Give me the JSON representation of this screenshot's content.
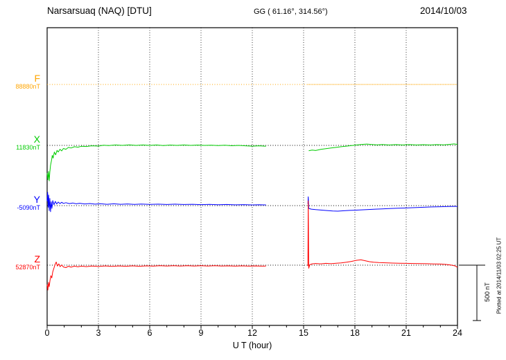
{
  "header": {
    "station": "Narsarsuaq (NAQ)  [DTU]",
    "coords": "GG ( 61.16°, 314.56°)",
    "date": "2014/10/03"
  },
  "axis": {
    "x_title": "U T (hour)",
    "x_ticks": [
      "0",
      "3",
      "6",
      "9",
      "12",
      "15",
      "18",
      "21",
      "24"
    ]
  },
  "scalebar": {
    "label": "500 nT",
    "span_nT": 500
  },
  "side_note": "Plotted at 2014/11/03 02:25 UT",
  "colors": {
    "frame": "#000000",
    "grid": "#000000",
    "F": "#FFA500",
    "X": "#00CC00",
    "Y": "#0000FF",
    "Z": "#FF0000"
  },
  "chart_data": {
    "type": "line",
    "title": "Narsarsuaq (NAQ)  [DTU]",
    "xlabel": "U T (hour)",
    "x_range": [
      0,
      24
    ],
    "x_tick_step": 3,
    "grid": true,
    "legend_position": "left-margin",
    "points_format": "[hour_UT, delta_nT_from_baseline]",
    "scale_nT_per_division": 500,
    "data_gap_hours": [
      12.8,
      15.25
    ],
    "series": [
      {
        "name": "F",
        "color": "#FFA500",
        "baseline_nT": 88880,
        "baseline_label": "88880nT",
        "style": "dotted",
        "segments": [
          [
            [
              0,
              0
            ],
            [
              12.8,
              0
            ]
          ],
          [
            [
              15.25,
              0
            ],
            [
              24,
              0
            ]
          ]
        ]
      },
      {
        "name": "X",
        "color": "#00CC00",
        "baseline_nT": 11830,
        "baseline_label": "11830nT",
        "style": "solid",
        "segments": [
          [
            [
              0,
              -250
            ],
            [
              0.04,
              -310
            ],
            [
              0.08,
              -235
            ],
            [
              0.12,
              -320
            ],
            [
              0.16,
              -240
            ],
            [
              0.2,
              -180
            ],
            [
              0.25,
              -140
            ],
            [
              0.3,
              -90
            ],
            [
              0.35,
              -115
            ],
            [
              0.42,
              -60
            ],
            [
              0.5,
              -85
            ],
            [
              0.58,
              -45
            ],
            [
              0.65,
              -60
            ],
            [
              0.75,
              -35
            ],
            [
              0.85,
              -50
            ],
            [
              0.95,
              -28
            ],
            [
              1.1,
              -35
            ],
            [
              1.25,
              -18
            ],
            [
              1.4,
              -24
            ],
            [
              1.6,
              -12
            ],
            [
              1.8,
              -16
            ],
            [
              2,
              -8
            ],
            [
              2.3,
              -10
            ],
            [
              2.6,
              -4
            ],
            [
              3,
              -6
            ],
            [
              3.3,
              2
            ],
            [
              3.6,
              -2
            ],
            [
              4,
              4
            ],
            [
              4.4,
              0
            ],
            [
              4.8,
              5
            ],
            [
              5.2,
              0
            ],
            [
              5.6,
              4
            ],
            [
              6,
              0
            ],
            [
              6.4,
              4
            ],
            [
              6.8,
              -1
            ],
            [
              7.2,
              3
            ],
            [
              7.6,
              0
            ],
            [
              8,
              4
            ],
            [
              8.4,
              0
            ],
            [
              8.8,
              3
            ],
            [
              9.2,
              0
            ],
            [
              9.6,
              2
            ],
            [
              10,
              -2
            ],
            [
              10.4,
              1
            ],
            [
              10.8,
              -3
            ],
            [
              11.2,
              0
            ],
            [
              11.6,
              -4
            ],
            [
              12,
              -7
            ],
            [
              12.4,
              -4
            ],
            [
              12.8,
              -8
            ]
          ],
          [
            [
              15.3,
              -48
            ],
            [
              15.5,
              -42
            ],
            [
              15.7,
              -46
            ],
            [
              16,
              -36
            ],
            [
              16.3,
              -30
            ],
            [
              16.6,
              -24
            ],
            [
              16.9,
              -18
            ],
            [
              17.2,
              -12
            ],
            [
              17.5,
              -7
            ],
            [
              17.8,
              -2
            ],
            [
              18.1,
              4
            ],
            [
              18.4,
              9
            ],
            [
              18.7,
              12
            ],
            [
              19,
              8
            ],
            [
              19.3,
              5
            ],
            [
              19.6,
              8
            ],
            [
              20,
              4
            ],
            [
              20.4,
              7
            ],
            [
              20.8,
              4
            ],
            [
              21.2,
              7
            ],
            [
              21.6,
              4
            ],
            [
              22,
              6
            ],
            [
              22.4,
              4
            ],
            [
              22.8,
              7
            ],
            [
              23.2,
              5
            ],
            [
              23.5,
              9
            ],
            [
              23.8,
              13
            ],
            [
              24,
              9
            ]
          ]
        ]
      },
      {
        "name": "Y",
        "color": "#0000FF",
        "baseline_nT": -5090,
        "baseline_label": "-5090nT",
        "style": "solid",
        "segments": [
          [
            [
              0,
              40
            ],
            [
              0.03,
              120
            ],
            [
              0.06,
              -15
            ],
            [
              0.09,
              95
            ],
            [
              0.12,
              -45
            ],
            [
              0.16,
              65
            ],
            [
              0.2,
              -55
            ],
            [
              0.24,
              35
            ],
            [
              0.28,
              -25
            ],
            [
              0.33,
              45
            ],
            [
              0.4,
              8
            ],
            [
              0.48,
              38
            ],
            [
              0.56,
              15
            ],
            [
              0.65,
              32
            ],
            [
              0.75,
              18
            ],
            [
              0.85,
              30
            ],
            [
              0.95,
              20
            ],
            [
              1.1,
              26
            ],
            [
              1.3,
              18
            ],
            [
              1.5,
              24
            ],
            [
              1.7,
              16
            ],
            [
              1.9,
              21
            ],
            [
              2.2,
              15
            ],
            [
              2.5,
              19
            ],
            [
              2.8,
              13
            ],
            [
              3.1,
              17
            ],
            [
              3.5,
              12
            ],
            [
              3.9,
              16
            ],
            [
              4.3,
              12
            ],
            [
              4.7,
              15
            ],
            [
              5.1,
              11
            ],
            [
              5.5,
              14
            ],
            [
              6,
              11
            ],
            [
              6.5,
              13
            ],
            [
              7,
              10
            ],
            [
              7.5,
              13
            ],
            [
              8,
              10
            ],
            [
              8.5,
              12
            ],
            [
              9,
              9
            ],
            [
              9.5,
              11
            ],
            [
              10,
              8
            ],
            [
              10.5,
              10
            ],
            [
              11,
              7
            ],
            [
              11.5,
              9
            ],
            [
              12,
              6
            ],
            [
              12.4,
              8
            ],
            [
              12.8,
              6
            ]
          ],
          [
            [
              15.25,
              15
            ],
            [
              15.27,
              80
            ],
            [
              15.3,
              -25
            ],
            [
              15.45,
              -32
            ],
            [
              15.7,
              -36
            ],
            [
              16,
              -40
            ],
            [
              16.3,
              -44
            ],
            [
              16.7,
              -48
            ],
            [
              17,
              -50
            ],
            [
              17.3,
              -47
            ],
            [
              17.7,
              -43
            ],
            [
              18,
              -41
            ],
            [
              18.4,
              -38
            ],
            [
              18.8,
              -35
            ],
            [
              19.2,
              -32
            ],
            [
              19.6,
              -30
            ],
            [
              20,
              -27
            ],
            [
              20.5,
              -24
            ],
            [
              21,
              -21
            ],
            [
              21.5,
              -18
            ],
            [
              22,
              -15
            ],
            [
              22.5,
              -12
            ],
            [
              23,
              -10
            ],
            [
              23.5,
              -8
            ],
            [
              24,
              -7
            ]
          ]
        ]
      },
      {
        "name": "Z",
        "color": "#FF0000",
        "baseline_nT": 52870,
        "baseline_label": "52870nT",
        "style": "solid",
        "segments": [
          [
            [
              0,
              -175
            ],
            [
              0.04,
              -225
            ],
            [
              0.08,
              -155
            ],
            [
              0.12,
              -195
            ],
            [
              0.17,
              -135
            ],
            [
              0.22,
              -95
            ],
            [
              0.27,
              -115
            ],
            [
              0.33,
              -60
            ],
            [
              0.4,
              -25
            ],
            [
              0.47,
              8
            ],
            [
              0.53,
              28
            ],
            [
              0.6,
              -8
            ],
            [
              0.68,
              12
            ],
            [
              0.76,
              -14
            ],
            [
              0.85,
              2
            ],
            [
              0.95,
              -16
            ],
            [
              1.1,
              -22
            ],
            [
              1.25,
              -10
            ],
            [
              1.4,
              -18
            ],
            [
              1.6,
              -9
            ],
            [
              1.8,
              -15
            ],
            [
              2,
              -9
            ],
            [
              2.3,
              -13
            ],
            [
              2.6,
              -8
            ],
            [
              3,
              -12
            ],
            [
              3.4,
              -7
            ],
            [
              3.8,
              -11
            ],
            [
              4.2,
              -7
            ],
            [
              4.6,
              -10
            ],
            [
              5,
              -6
            ],
            [
              5.4,
              -10
            ],
            [
              5.8,
              -6
            ],
            [
              6.2,
              -9
            ],
            [
              6.6,
              -5
            ],
            [
              7,
              -8
            ],
            [
              7.4,
              -5
            ],
            [
              7.8,
              -8
            ],
            [
              8.2,
              -5
            ],
            [
              8.6,
              -8
            ],
            [
              9,
              -5
            ],
            [
              9.4,
              -8
            ],
            [
              9.8,
              -5
            ],
            [
              10.2,
              -8
            ],
            [
              10.6,
              -6
            ],
            [
              11,
              -9
            ],
            [
              11.4,
              -6
            ],
            [
              11.8,
              -9
            ],
            [
              12.2,
              -7
            ],
            [
              12.5,
              -9
            ],
            [
              12.8,
              -8
            ]
          ],
          [
            [
              15.25,
              -8
            ],
            [
              15.27,
              580
            ],
            [
              15.3,
              -28
            ],
            [
              15.36,
              4
            ],
            [
              15.5,
              12
            ],
            [
              15.7,
              15
            ],
            [
              16,
              12
            ],
            [
              16.3,
              16
            ],
            [
              16.6,
              13
            ],
            [
              16.9,
              17
            ],
            [
              17.2,
              20
            ],
            [
              17.5,
              26
            ],
            [
              17.8,
              34
            ],
            [
              18.1,
              44
            ],
            [
              18.35,
              48
            ],
            [
              18.6,
              40
            ],
            [
              18.85,
              31
            ],
            [
              19.1,
              26
            ],
            [
              19.4,
              23
            ],
            [
              19.8,
              21
            ],
            [
              20.2,
              19
            ],
            [
              20.6,
              17
            ],
            [
              21,
              16
            ],
            [
              21.4,
              15
            ],
            [
              21.8,
              14
            ],
            [
              22.2,
              13
            ],
            [
              22.6,
              11
            ],
            [
              23,
              10
            ],
            [
              23.3,
              7
            ],
            [
              23.6,
              2
            ],
            [
              23.85,
              -6
            ],
            [
              24,
              -20
            ]
          ]
        ]
      }
    ]
  }
}
